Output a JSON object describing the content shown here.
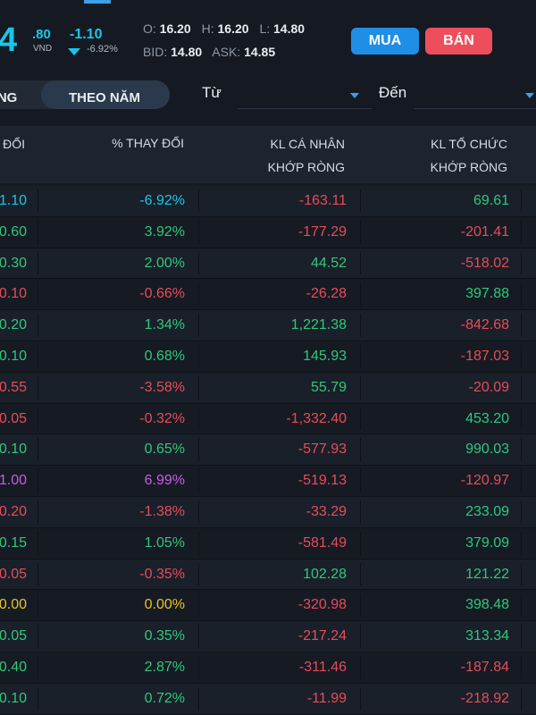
{
  "quote": {
    "price_main": "4",
    "price_decimal": ".80",
    "currency": "VND",
    "change": "-1.10",
    "change_pct": "-6.92%",
    "open_label": "O:",
    "open": "16.20",
    "high_label": "H:",
    "high": "16.20",
    "low_label": "L:",
    "low": "14.80",
    "bid_label": "BID:",
    "bid": "14.80",
    "ask_label": "ASK:",
    "ask": "14.85"
  },
  "actions": {
    "buy": "MUA",
    "sell": "BÁN"
  },
  "filters": {
    "period_left": "ĂNG",
    "period_active": "THEO NĂM",
    "from_label": "Từ",
    "to_label": "Đến"
  },
  "table": {
    "headers": {
      "c1": "ĐỔI",
      "c2": "% THAY ĐỔI",
      "c3_l1": "KL CÁ NHÂN",
      "c3_l2": "KHỚP RÒNG",
      "c4_l1": "KL TỔ CHỨC",
      "c4_l2": "KHỚP RÒNG"
    },
    "rows": [
      {
        "change": "1.10",
        "pct": "-6.92%",
        "indiv": "-163.11",
        "inst": "69.61",
        "chg_color": "cyan",
        "indiv_color": "red",
        "inst_color": "green"
      },
      {
        "change": "0.60",
        "pct": "3.92%",
        "indiv": "-177.29",
        "inst": "-201.41",
        "chg_color": "green",
        "indiv_color": "red",
        "inst_color": "red"
      },
      {
        "change": "0.30",
        "pct": "2.00%",
        "indiv": "44.52",
        "inst": "-518.02",
        "chg_color": "green",
        "indiv_color": "green",
        "inst_color": "red"
      },
      {
        "change": "0.10",
        "pct": "-0.66%",
        "indiv": "-26.28",
        "inst": "397.88",
        "chg_color": "red",
        "indiv_color": "red",
        "inst_color": "green"
      },
      {
        "change": "0.20",
        "pct": "1.34%",
        "indiv": "1,221.38",
        "inst": "-842.68",
        "chg_color": "green",
        "indiv_color": "green",
        "inst_color": "red"
      },
      {
        "change": "0.10",
        "pct": "0.68%",
        "indiv": "145.93",
        "inst": "-187.03",
        "chg_color": "green",
        "indiv_color": "green",
        "inst_color": "red"
      },
      {
        "change": "0.55",
        "pct": "-3.58%",
        "indiv": "55.79",
        "inst": "-20.09",
        "chg_color": "red",
        "indiv_color": "green",
        "inst_color": "red"
      },
      {
        "change": "0.05",
        "pct": "-0.32%",
        "indiv": "-1,332.40",
        "inst": "453.20",
        "chg_color": "red",
        "indiv_color": "red",
        "inst_color": "green"
      },
      {
        "change": "0.10",
        "pct": "0.65%",
        "indiv": "-577.93",
        "inst": "990.03",
        "chg_color": "green",
        "indiv_color": "red",
        "inst_color": "green"
      },
      {
        "change": "1.00",
        "pct": "6.99%",
        "indiv": "-519.13",
        "inst": "-120.97",
        "chg_color": "purple",
        "indiv_color": "red",
        "inst_color": "red"
      },
      {
        "change": "0.20",
        "pct": "-1.38%",
        "indiv": "-33.29",
        "inst": "233.09",
        "chg_color": "red",
        "indiv_color": "red",
        "inst_color": "green"
      },
      {
        "change": "0.15",
        "pct": "1.05%",
        "indiv": "-581.49",
        "inst": "379.09",
        "chg_color": "green",
        "indiv_color": "red",
        "inst_color": "green"
      },
      {
        "change": "0.05",
        "pct": "-0.35%",
        "indiv": "102.28",
        "inst": "121.22",
        "chg_color": "red",
        "indiv_color": "green",
        "inst_color": "green"
      },
      {
        "change": "0.00",
        "pct": "0.00%",
        "indiv": "-320.98",
        "inst": "398.48",
        "chg_color": "yellow",
        "indiv_color": "red",
        "inst_color": "green"
      },
      {
        "change": "0.05",
        "pct": "0.35%",
        "indiv": "-217.24",
        "inst": "313.34",
        "chg_color": "green",
        "indiv_color": "red",
        "inst_color": "green"
      },
      {
        "change": "0.40",
        "pct": "2.87%",
        "indiv": "-311.46",
        "inst": "-187.84",
        "chg_color": "green",
        "indiv_color": "red",
        "inst_color": "red"
      },
      {
        "change": "0.10",
        "pct": "0.72%",
        "indiv": "-11.99",
        "inst": "-218.92",
        "chg_color": "green",
        "indiv_color": "red",
        "inst_color": "red"
      }
    ]
  },
  "colors": {
    "cyan": "#19c6e8",
    "green": "#30c77c",
    "red": "#e64c5a",
    "yellow": "#e9c12c",
    "purple": "#c85de5",
    "buy": "#1f8ee6",
    "sell": "#ee4e5c"
  },
  "icons": {
    "change_direction": "down-triangle-icon",
    "dropdown": "caret-down-icon"
  }
}
